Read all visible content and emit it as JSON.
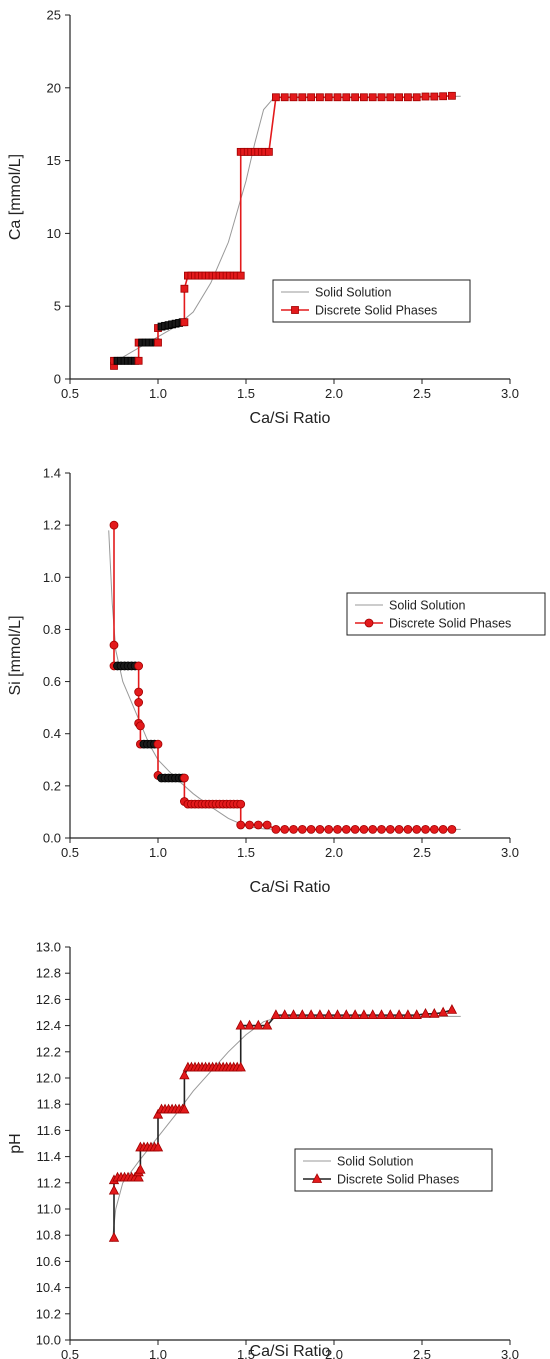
{
  "chart_data": [
    {
      "type": "line",
      "xlabel": "Ca/Si Ratio",
      "ylabel": "Ca [mmol/L]",
      "xlim": [
        0.5,
        3.0
      ],
      "ylim": [
        0,
        25
      ],
      "xticks": [
        "0.5",
        "1.0",
        "1.5",
        "2.0",
        "2.5",
        "3.0"
      ],
      "yticks": [
        "0",
        "5",
        "10",
        "15",
        "20",
        "25"
      ],
      "grid": false,
      "legend": {
        "position": "center-right",
        "entries": [
          "Solid Solution",
          "Discrete Solid Phases"
        ]
      },
      "series": [
        {
          "name": "Solid Solution",
          "style": "thin-line",
          "color": "#999999",
          "x": [
            0.74,
            0.8,
            0.9,
            1.0,
            1.1,
            1.2,
            1.3,
            1.4,
            1.5,
            1.55,
            1.6,
            1.65,
            1.7,
            2.0,
            2.5,
            2.72
          ],
          "y": [
            0.9,
            1.5,
            2.2,
            2.9,
            3.6,
            4.6,
            6.6,
            9.4,
            13.6,
            16.2,
            18.5,
            19.2,
            19.35,
            19.35,
            19.38,
            19.42
          ]
        },
        {
          "name": "Discrete Solid Phases",
          "style": "line-with-markers",
          "marker": "square",
          "color": "#e31a1c",
          "x": [
            0.75,
            0.75,
            0.77,
            0.79,
            0.81,
            0.83,
            0.85,
            0.87,
            0.89,
            0.89,
            0.91,
            0.93,
            0.95,
            0.97,
            0.99,
            1.0,
            1.0,
            1.02,
            1.04,
            1.06,
            1.08,
            1.1,
            1.12,
            1.14,
            1.15,
            1.15,
            1.17,
            1.19,
            1.21,
            1.23,
            1.25,
            1.27,
            1.29,
            1.31,
            1.33,
            1.35,
            1.37,
            1.39,
            1.41,
            1.43,
            1.45,
            1.47,
            1.47,
            1.49,
            1.51,
            1.53,
            1.55,
            1.57,
            1.59,
            1.61,
            1.63,
            1.67,
            1.72,
            1.77,
            1.82,
            1.87,
            1.92,
            1.97,
            2.02,
            2.07,
            2.12,
            2.17,
            2.22,
            2.27,
            2.32,
            2.37,
            2.42,
            2.47,
            2.52,
            2.57,
            2.62,
            2.67
          ],
          "y": [
            0.9,
            1.25,
            1.25,
            1.25,
            1.25,
            1.25,
            1.25,
            1.25,
            1.25,
            2.5,
            2.5,
            2.5,
            2.5,
            2.5,
            2.5,
            2.5,
            3.5,
            3.6,
            3.65,
            3.7,
            3.75,
            3.8,
            3.85,
            3.9,
            3.9,
            6.2,
            7.1,
            7.1,
            7.1,
            7.1,
            7.1,
            7.1,
            7.1,
            7.1,
            7.1,
            7.1,
            7.1,
            7.1,
            7.1,
            7.1,
            7.1,
            7.1,
            15.6,
            15.6,
            15.6,
            15.6,
            15.6,
            15.6,
            15.6,
            15.6,
            15.6,
            19.35,
            19.35,
            19.35,
            19.35,
            19.35,
            19.35,
            19.35,
            19.35,
            19.35,
            19.35,
            19.35,
            19.35,
            19.35,
            19.35,
            19.35,
            19.35,
            19.35,
            19.4,
            19.4,
            19.42,
            19.45
          ]
        }
      ]
    },
    {
      "type": "line",
      "xlabel": "Ca/Si Ratio",
      "ylabel": "Si [mmol/L]",
      "xlim": [
        0.5,
        3.0
      ],
      "ylim": [
        0.0,
        1.4
      ],
      "xticks": [
        "0.5",
        "1.0",
        "1.5",
        "2.0",
        "2.5",
        "3.0"
      ],
      "yticks": [
        "0.0",
        "0.2",
        "0.4",
        "0.6",
        "0.8",
        "1.0",
        "1.2",
        "1.4"
      ],
      "grid": false,
      "legend": {
        "position": "center-right",
        "entries": [
          "Solid Solution",
          "Discrete Solid Phases"
        ]
      },
      "series": [
        {
          "name": "Solid Solution",
          "style": "thin-line",
          "color": "#999999",
          "x": [
            0.72,
            0.74,
            0.76,
            0.8,
            0.85,
            0.9,
            0.95,
            1.0,
            1.1,
            1.2,
            1.3,
            1.4,
            1.5,
            1.6,
            1.7,
            2.0,
            2.5,
            2.72
          ],
          "y": [
            1.18,
            0.9,
            0.72,
            0.6,
            0.52,
            0.44,
            0.36,
            0.3,
            0.23,
            0.17,
            0.12,
            0.075,
            0.045,
            0.035,
            0.033,
            0.033,
            0.033,
            0.033
          ]
        },
        {
          "name": "Discrete Solid Phases",
          "style": "line-with-markers",
          "marker": "circle",
          "color": "#e31a1c",
          "x": [
            0.75,
            0.75,
            0.75,
            0.77,
            0.79,
            0.81,
            0.83,
            0.85,
            0.87,
            0.89,
            0.89,
            0.89,
            0.89,
            0.9,
            0.9,
            0.92,
            0.94,
            0.96,
            0.98,
            1.0,
            1.0,
            1.02,
            1.04,
            1.06,
            1.08,
            1.1,
            1.12,
            1.14,
            1.15,
            1.15,
            1.17,
            1.19,
            1.21,
            1.23,
            1.25,
            1.27,
            1.29,
            1.31,
            1.33,
            1.35,
            1.37,
            1.39,
            1.41,
            1.43,
            1.45,
            1.47,
            1.47,
            1.52,
            1.57,
            1.62,
            1.67,
            1.72,
            1.77,
            1.82,
            1.87,
            1.92,
            1.97,
            2.02,
            2.07,
            2.12,
            2.17,
            2.22,
            2.27,
            2.32,
            2.37,
            2.42,
            2.47,
            2.52,
            2.57,
            2.62,
            2.67
          ],
          "y": [
            1.2,
            0.74,
            0.66,
            0.66,
            0.66,
            0.66,
            0.66,
            0.66,
            0.66,
            0.66,
            0.56,
            0.52,
            0.44,
            0.43,
            0.36,
            0.36,
            0.36,
            0.36,
            0.36,
            0.36,
            0.24,
            0.23,
            0.23,
            0.23,
            0.23,
            0.23,
            0.23,
            0.23,
            0.23,
            0.14,
            0.13,
            0.13,
            0.13,
            0.13,
            0.13,
            0.13,
            0.13,
            0.13,
            0.13,
            0.13,
            0.13,
            0.13,
            0.13,
            0.13,
            0.13,
            0.13,
            0.05,
            0.05,
            0.05,
            0.05,
            0.033,
            0.033,
            0.033,
            0.033,
            0.033,
            0.033,
            0.033,
            0.033,
            0.033,
            0.033,
            0.033,
            0.033,
            0.033,
            0.033,
            0.033,
            0.033,
            0.033,
            0.033,
            0.033,
            0.033,
            0.033
          ]
        }
      ]
    },
    {
      "type": "line",
      "xlabel": "Ca/Si Ratio",
      "ylabel": "pH",
      "xlim": [
        0.5,
        3.0
      ],
      "ylim": [
        10.0,
        13.0
      ],
      "xticks": [
        "0.5",
        "1.0",
        "1.5",
        "2.0",
        "2.5",
        "3.0"
      ],
      "yticks": [
        "10.0",
        "10.2",
        "10.4",
        "10.6",
        "10.8",
        "11.0",
        "11.2",
        "11.4",
        "11.6",
        "11.8",
        "12.0",
        "12.2",
        "12.4",
        "12.6",
        "12.8",
        "13.0"
      ],
      "grid": false,
      "legend": {
        "position": "bottom-right",
        "entries": [
          "Solid Solution",
          "Discrete Solid Phases"
        ]
      },
      "series": [
        {
          "name": "Solid Solution",
          "style": "thin-line",
          "color": "#999999",
          "x": [
            0.74,
            0.76,
            0.8,
            0.9,
            1.0,
            1.1,
            1.2,
            1.3,
            1.4,
            1.5,
            1.6,
            1.7,
            2.0,
            2.5,
            2.72
          ],
          "y": [
            10.75,
            11.0,
            11.2,
            11.38,
            11.55,
            11.72,
            11.9,
            12.05,
            12.2,
            12.33,
            12.43,
            12.47,
            12.47,
            12.47,
            12.47
          ]
        },
        {
          "name": "Discrete Solid Phases",
          "style": "line-with-markers",
          "marker": "triangle",
          "color": "#e31a1c",
          "line_color": "#222222",
          "x": [
            0.75,
            0.75,
            0.75,
            0.77,
            0.79,
            0.81,
            0.83,
            0.85,
            0.87,
            0.89,
            0.89,
            0.9,
            0.9,
            0.92,
            0.94,
            0.96,
            0.98,
            1.0,
            1.0,
            1.02,
            1.04,
            1.06,
            1.08,
            1.1,
            1.12,
            1.14,
            1.15,
            1.15,
            1.17,
            1.19,
            1.21,
            1.23,
            1.25,
            1.27,
            1.29,
            1.31,
            1.33,
            1.35,
            1.37,
            1.39,
            1.41,
            1.43,
            1.45,
            1.47,
            1.47,
            1.52,
            1.57,
            1.62,
            1.67,
            1.72,
            1.77,
            1.82,
            1.87,
            1.92,
            1.97,
            2.02,
            2.07,
            2.12,
            2.17,
            2.22,
            2.27,
            2.32,
            2.37,
            2.42,
            2.47,
            2.52,
            2.57,
            2.62,
            2.67
          ],
          "y": [
            10.78,
            11.14,
            11.22,
            11.24,
            11.24,
            11.24,
            11.24,
            11.24,
            11.24,
            11.24,
            11.28,
            11.3,
            11.47,
            11.47,
            11.47,
            11.47,
            11.47,
            11.47,
            11.72,
            11.76,
            11.76,
            11.76,
            11.76,
            11.76,
            11.76,
            11.76,
            11.76,
            12.02,
            12.08,
            12.08,
            12.08,
            12.08,
            12.08,
            12.08,
            12.08,
            12.08,
            12.08,
            12.08,
            12.08,
            12.08,
            12.08,
            12.08,
            12.08,
            12.08,
            12.4,
            12.4,
            12.4,
            12.4,
            12.48,
            12.48,
            12.48,
            12.48,
            12.48,
            12.48,
            12.48,
            12.48,
            12.48,
            12.48,
            12.48,
            12.48,
            12.48,
            12.48,
            12.48,
            12.48,
            12.48,
            12.49,
            12.49,
            12.5,
            12.52
          ]
        }
      ]
    }
  ]
}
